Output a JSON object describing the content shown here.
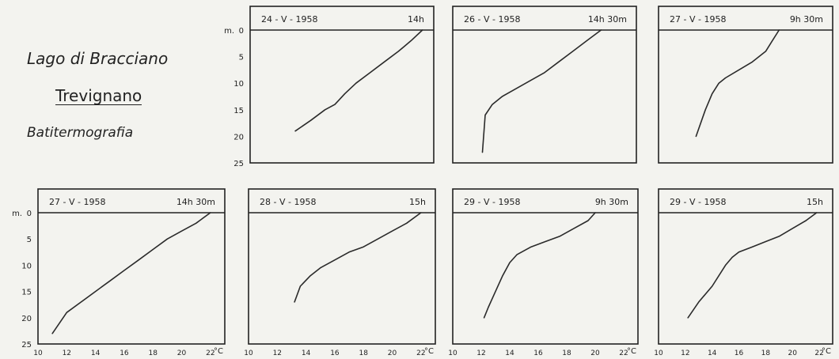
{
  "header": {
    "lake": "Lago di Bracciano",
    "station": "Trevignano",
    "subject": "Batitermografia"
  },
  "depth_unit": "m.",
  "temp_unit": "°C",
  "depth_ticks": [
    0,
    5,
    10,
    15,
    20,
    25
  ],
  "temp_ticks": [
    10,
    12,
    14,
    16,
    18,
    20,
    22
  ],
  "chart_data": [
    {
      "type": "line",
      "date": "24 - V - 1958",
      "time": "14h",
      "xlabel": "°C",
      "ylabel": "m.",
      "xlim": [
        10,
        23
      ],
      "ylim": [
        25,
        0
      ],
      "x": [
        22.2,
        21.4,
        20.5,
        19.5,
        18.5,
        17.5,
        16.7,
        16.0,
        15.3,
        14.3,
        13.2
      ],
      "y": [
        0,
        2,
        4,
        6,
        8,
        10,
        12,
        14,
        15,
        17,
        19
      ]
    },
    {
      "type": "line",
      "date": "26 - V - 1958",
      "time": "14h 30m",
      "xlabel": "°C",
      "ylabel": "m.",
      "xlim": [
        10,
        23
      ],
      "ylim": [
        25,
        0
      ],
      "x": [
        20.5,
        19.5,
        18.5,
        17.5,
        16.5,
        15.5,
        14.5,
        13.5,
        12.8,
        12.3,
        12.1
      ],
      "y": [
        0,
        2,
        4,
        6,
        8,
        9.5,
        11,
        12.5,
        14,
        16,
        23
      ]
    },
    {
      "type": "line",
      "date": "27 - V - 1958",
      "time": "9h 30m",
      "xlabel": "°C",
      "ylabel": "m.",
      "xlim": [
        10,
        23
      ],
      "ylim": [
        25,
        0
      ],
      "x": [
        19.0,
        18.5,
        18.0,
        17.0,
        16.0,
        15.0,
        14.5,
        14.0,
        13.5,
        12.8
      ],
      "y": [
        0,
        2,
        4,
        6,
        7.5,
        9,
        10,
        12,
        15,
        20
      ]
    },
    {
      "type": "line",
      "date": "27 - V - 1958",
      "time": "14h 30m",
      "xlabel": "°C",
      "ylabel": "m.",
      "xlim": [
        10,
        23
      ],
      "ylim": [
        25,
        0
      ],
      "x": [
        22.0,
        21.0,
        20.0,
        19.0,
        18.0,
        17.0,
        16.0,
        15.0,
        14.0,
        13.0,
        12.0,
        11.0
      ],
      "y": [
        0,
        2,
        3.5,
        5,
        7,
        9,
        11,
        13,
        15,
        17,
        19,
        23
      ]
    },
    {
      "type": "line",
      "date": "28 - V - 1958",
      "time": "15h",
      "xlabel": "°C",
      "ylabel": "m.",
      "xlim": [
        10,
        23
      ],
      "ylim": [
        25,
        0
      ],
      "x": [
        22.0,
        21.0,
        20.0,
        19.0,
        18.0,
        17.0,
        16.0,
        15.0,
        14.3,
        13.6,
        13.2
      ],
      "y": [
        0,
        2,
        3.5,
        5,
        6.5,
        7.5,
        9,
        10.5,
        12,
        14,
        17
      ]
    },
    {
      "type": "line",
      "date": "29 - V - 1958",
      "time": "9h 30m",
      "xlabel": "°C",
      "ylabel": "m.",
      "xlim": [
        10,
        23
      ],
      "ylim": [
        25,
        0
      ],
      "x": [
        20.0,
        19.5,
        18.5,
        17.5,
        16.5,
        15.5,
        14.5,
        14.0,
        13.5,
        13.0,
        12.5,
        12.2
      ],
      "y": [
        0,
        1.5,
        3,
        4.5,
        5.5,
        6.5,
        8,
        9.5,
        12,
        15,
        18,
        20
      ]
    },
    {
      "type": "line",
      "date": "29 - V - 1958",
      "time": "15h",
      "xlabel": "°C",
      "ylabel": "m.",
      "xlim": [
        10,
        23
      ],
      "ylim": [
        25,
        0
      ],
      "x": [
        21.8,
        21.0,
        20.0,
        19.0,
        18.0,
        17.0,
        16.0,
        15.5,
        15.0,
        14.0,
        13.0,
        12.2
      ],
      "y": [
        0,
        1.5,
        3,
        4.5,
        5.5,
        6.5,
        7.5,
        8.5,
        10,
        14,
        17,
        20
      ]
    }
  ]
}
